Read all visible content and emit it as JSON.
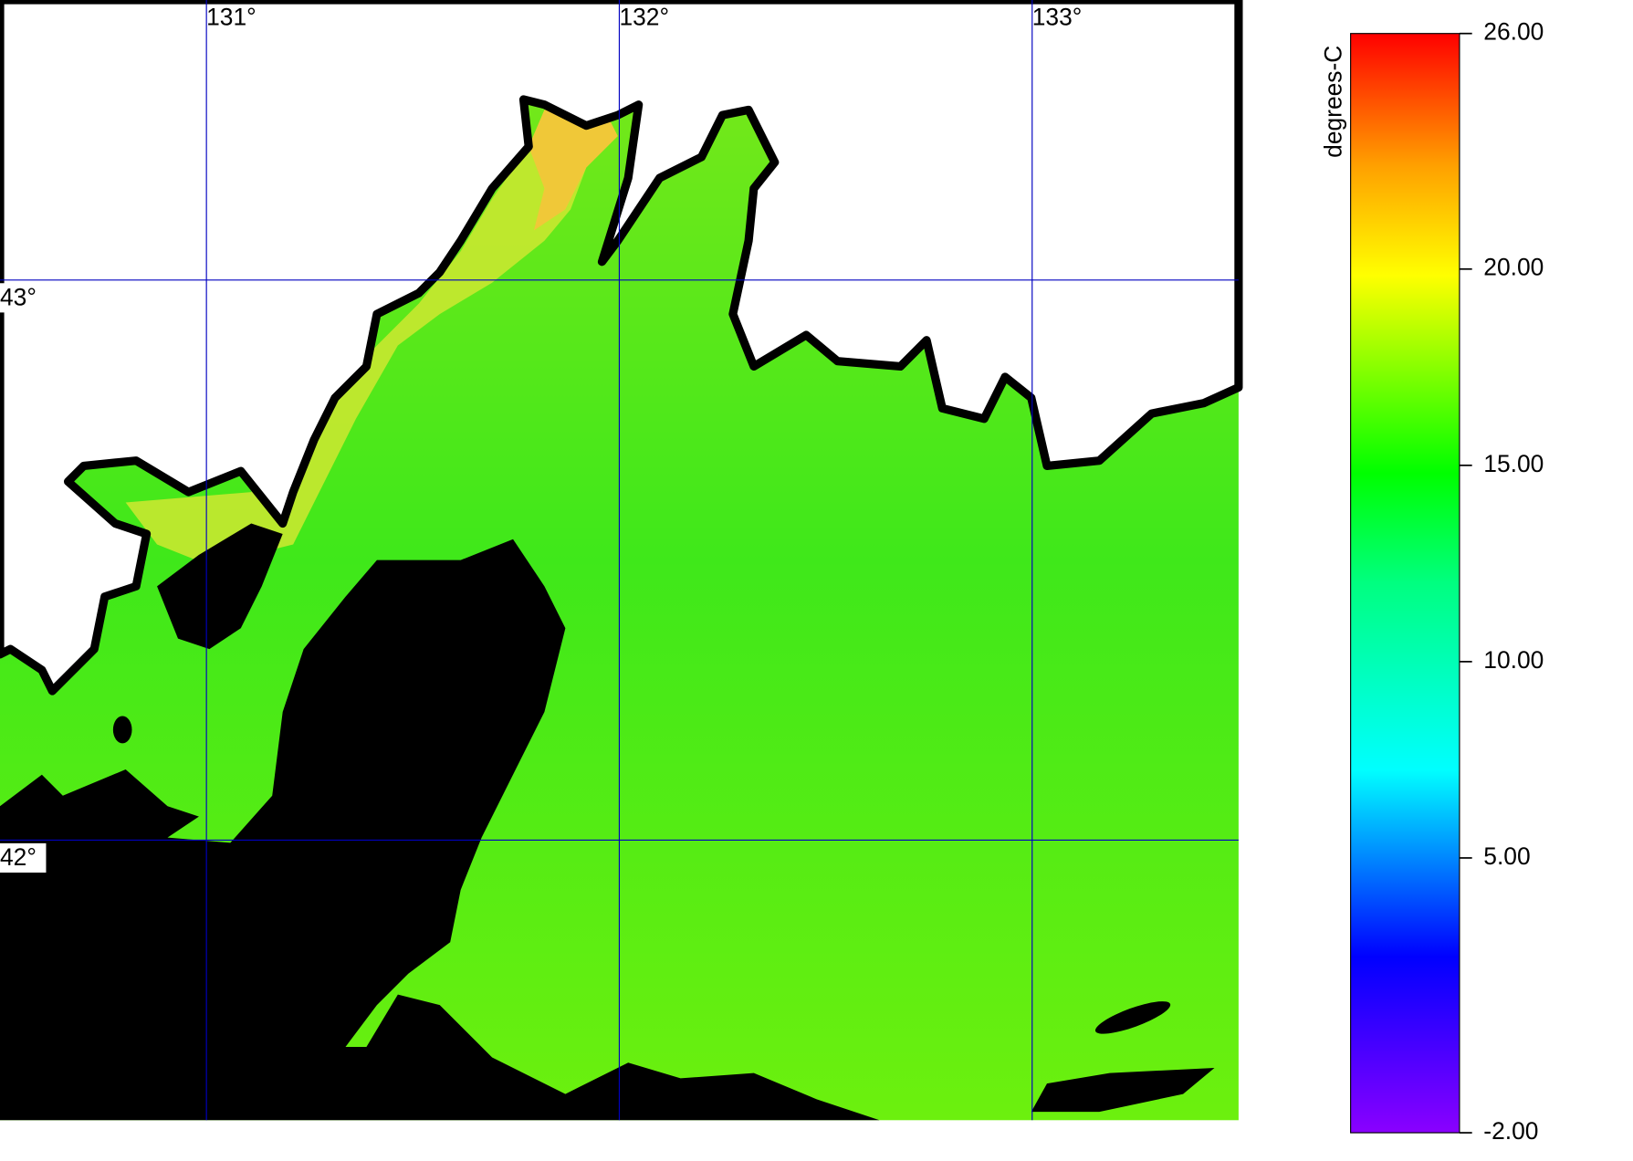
{
  "map": {
    "lonlim": [
      130.5,
      133.5
    ],
    "latlim": [
      41.5,
      43.5
    ],
    "lon_ticks": [
      {
        "value": 131,
        "label": "131°"
      },
      {
        "value": 132,
        "label": "132°"
      },
      {
        "value": 133,
        "label": "133°"
      }
    ],
    "lat_ticks": [
      {
        "value": 43,
        "label": "43°"
      },
      {
        "value": 42,
        "label": "42°"
      }
    ]
  },
  "colorbar": {
    "label": "degrees-C",
    "range": [
      -2,
      26
    ],
    "ticks": [
      {
        "value": 26,
        "label": "26.00"
      },
      {
        "value": 20,
        "label": "20.00"
      },
      {
        "value": 15,
        "label": "15.00"
      },
      {
        "value": 10,
        "label": "10.00"
      },
      {
        "value": 5,
        "label": "5.00"
      },
      {
        "value": -2,
        "label": "-2.00"
      }
    ]
  }
}
